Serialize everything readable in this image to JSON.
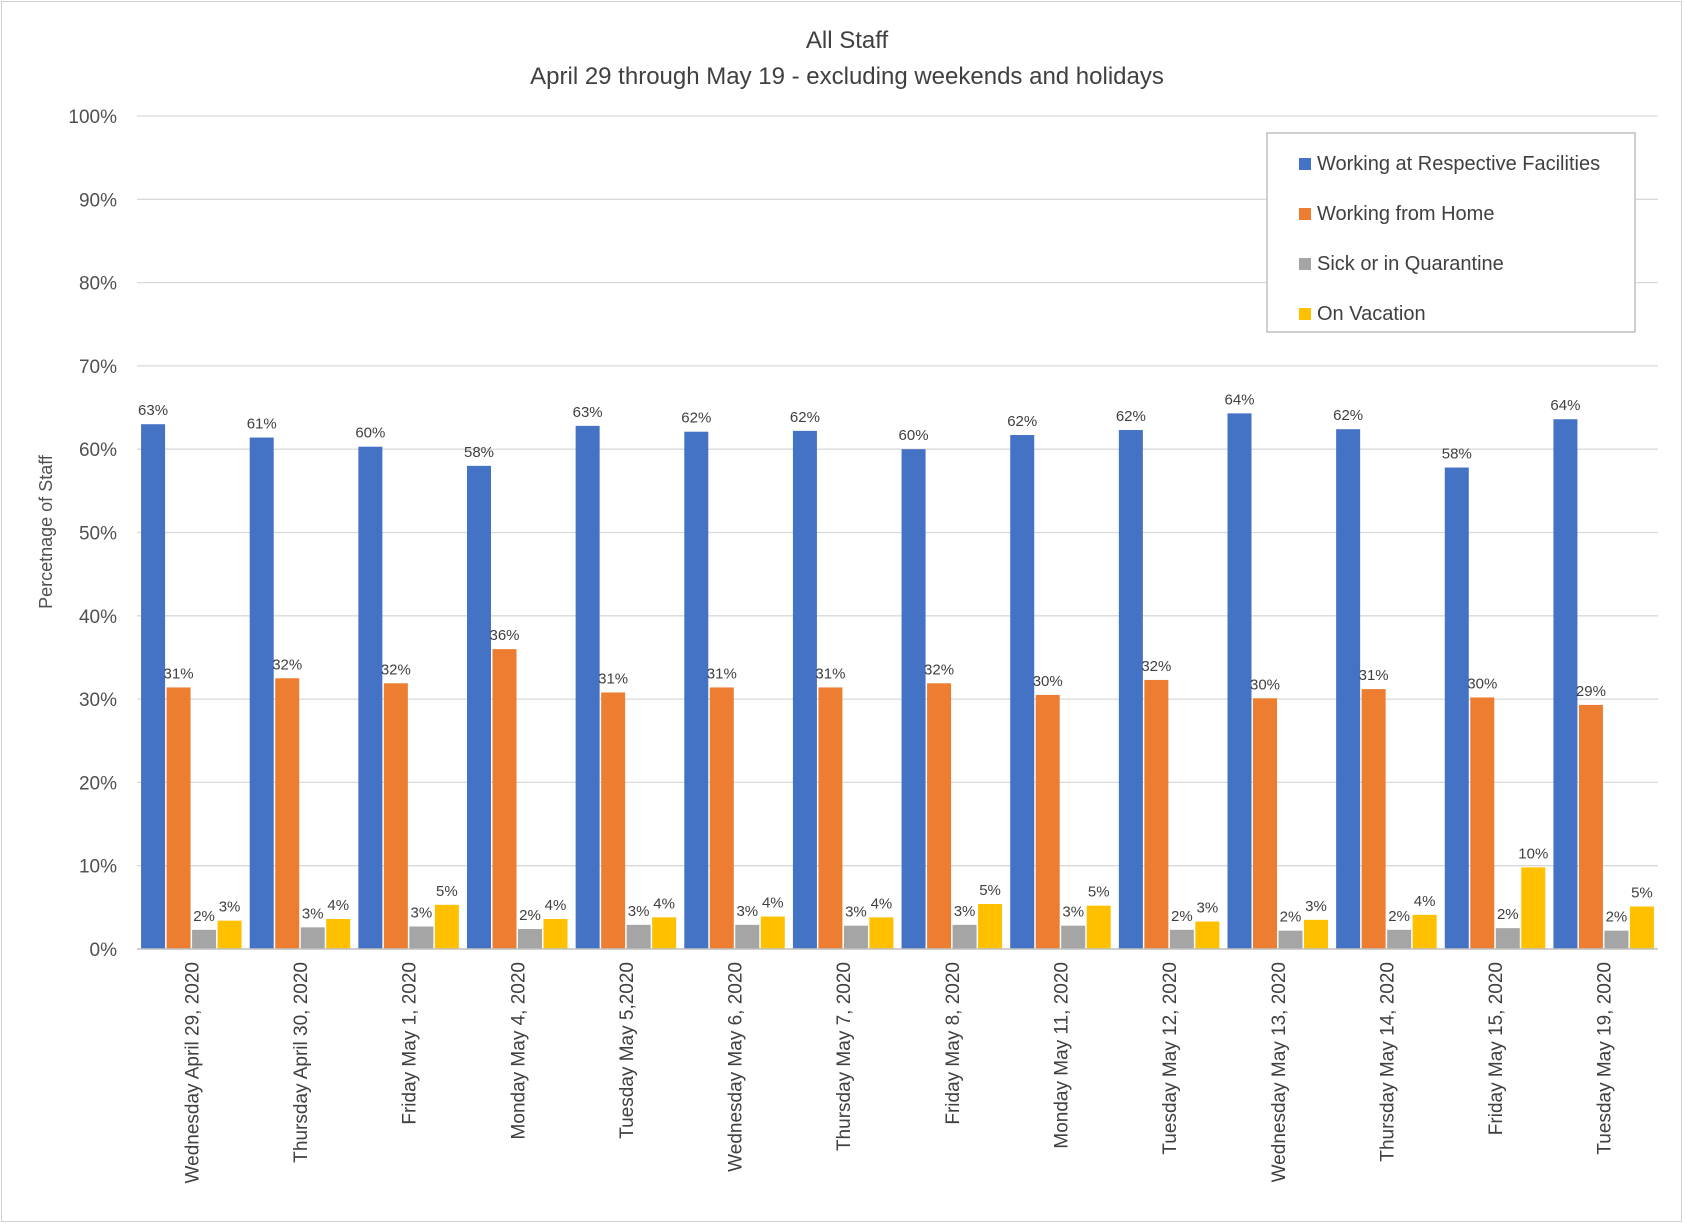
{
  "chart_data": {
    "type": "bar",
    "title": "All Staff",
    "subtitle": "April 29 through May 19 - excluding weekends and holidays",
    "ylabel": "Percetnage of Staff",
    "xlabel": "",
    "ylim": [
      0,
      100
    ],
    "yticks": [
      "0%",
      "10%",
      "20%",
      "30%",
      "40%",
      "50%",
      "60%",
      "70%",
      "80%",
      "90%",
      "100%"
    ],
    "grid": true,
    "legend_position": "top-right",
    "categories": [
      "Wednesday April 29, 2020",
      "Thursday April 30, 2020",
      "Friday May 1, 2020",
      "Monday May 4, 2020",
      "Tuesday May 5,2020",
      "Wednesday May 6, 2020",
      "Thursday May 7, 2020",
      "Friday May 8, 2020",
      "Monday May 11, 2020",
      "Tuesday May 12, 2020",
      "Wednesday May 13, 2020",
      "Thursday May 14, 2020",
      "Friday May 15, 2020",
      "Tuesday May 19, 2020"
    ],
    "series": [
      {
        "name": "Working at Respective Facilities",
        "color": "#4472C4",
        "values": [
          63.0,
          61.4,
          60.3,
          58.0,
          62.8,
          62.1,
          62.2,
          60.0,
          61.7,
          62.3,
          64.3,
          62.4,
          57.8,
          63.6
        ],
        "labels": [
          "63%",
          "61%",
          "60%",
          "58%",
          "63%",
          "62%",
          "62%",
          "60%",
          "62%",
          "62%",
          "64%",
          "62%",
          "58%",
          "64%"
        ]
      },
      {
        "name": "Working from Home",
        "color": "#ED7D31",
        "values": [
          31.4,
          32.5,
          31.9,
          36.0,
          30.8,
          31.4,
          31.4,
          31.9,
          30.5,
          32.3,
          30.1,
          31.2,
          30.2,
          29.3
        ],
        "labels": [
          "31%",
          "32%",
          "32%",
          "36%",
          "31%",
          "31%",
          "31%",
          "32%",
          "30%",
          "32%",
          "30%",
          "31%",
          "30%",
          "29%"
        ]
      },
      {
        "name": "Sick or in Quarantine",
        "color": "#A5A5A5",
        "values": [
          2.3,
          2.6,
          2.7,
          2.4,
          2.9,
          2.9,
          2.8,
          2.9,
          2.8,
          2.3,
          2.2,
          2.3,
          2.5,
          2.2
        ],
        "labels": [
          "2%",
          "3%",
          "3%",
          "2%",
          "3%",
          "3%",
          "3%",
          "3%",
          "3%",
          "2%",
          "2%",
          "2%",
          "2%",
          "2%"
        ]
      },
      {
        "name": "On Vacation",
        "color": "#FFC000",
        "values": [
          3.4,
          3.6,
          5.3,
          3.6,
          3.8,
          3.9,
          3.8,
          5.4,
          5.2,
          3.3,
          3.5,
          4.1,
          9.8,
          5.1
        ],
        "labels": [
          "3%",
          "4%",
          "5%",
          "4%",
          "4%",
          "4%",
          "4%",
          "5%",
          "5%",
          "3%",
          "3%",
          "4%",
          "10%",
          "5%"
        ]
      }
    ]
  }
}
